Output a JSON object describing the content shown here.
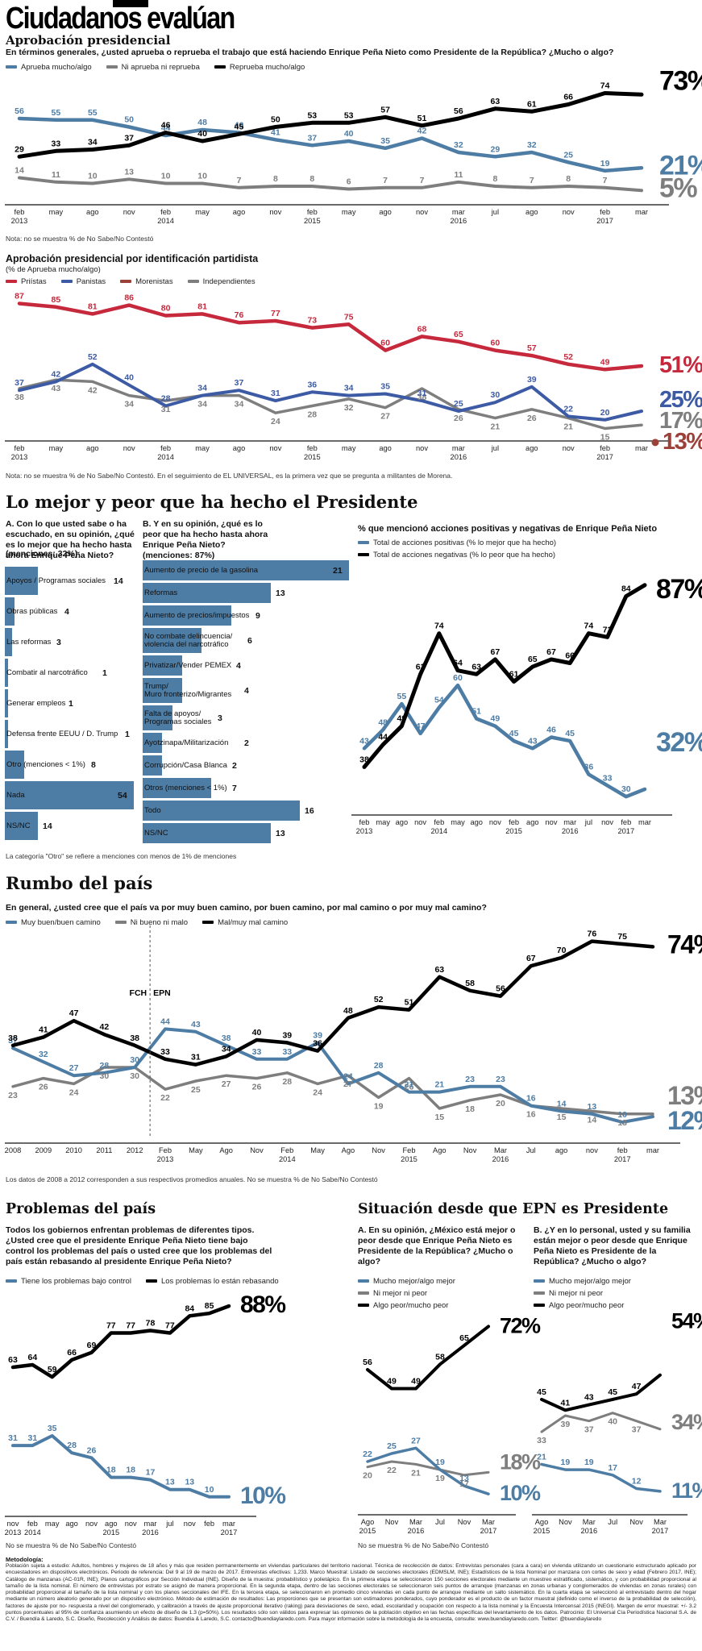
{
  "title": "Ciudadanos evalúan",
  "colors": {
    "steel_blue": "#4d7ca4",
    "black": "#000000",
    "gray": "#7e7e7e",
    "pri_red": "#c6283c",
    "pan_blue": "#3c5ba4",
    "morena_maroon": "#9c4139"
  },
  "s1": {
    "heading": "Aprobación presidencial",
    "question": "En términos generales, ¿usted aprueba o reprueba el trabajo que está haciendo Enrique Peña Nieto como Presidente de la República? ¿Mucho o algo?",
    "legend": [
      {
        "label": "Aprueba mucho/algo",
        "color": "#4d7ca4"
      },
      {
        "label": "Ni aprueba ni reprueba",
        "color": "#7e7e7e"
      },
      {
        "label": "Reprueba mucho/algo",
        "color": "#000000"
      }
    ],
    "note": "Nota: no se muestra % de No Sabe/No Contestó"
  },
  "s2": {
    "heading": "Aprobación presidencial por identificación partidista",
    "subtitle": "(% de Aprueba mucho/algo)",
    "legend": [
      {
        "label": "Priístas",
        "color": "#c6283c"
      },
      {
        "label": "Panistas",
        "color": "#3c5ba4"
      },
      {
        "label": "Morenistas",
        "color": "#9c4139"
      },
      {
        "label": "Independientes",
        "color": "#7e7e7e"
      }
    ],
    "note": "Nota: no se muestra % de No Sabe/No Contestó. En el seguimiento de EL UNIVERSAL, es la primera vez que se pregunta a militantes de Morena."
  },
  "s3": {
    "heading": "Lo mejor y peor que ha hecho el Presidente",
    "question_a": "A. Con lo que usted sabe o ha escuchado, en su opinión, ¿qué es lo mejor que ha hecho hasta ahora Enrique Peña Nieto?",
    "mentions_a": "(menciones: 32%)",
    "question_b": "B. Y en su opinión, ¿qué es lo peor que ha hecho hasta ahora Enrique Peña Nieto?",
    "mentions_b": "(menciones: 87%)",
    "right_title": "% que mencionó acciones positivas y negativas de Enrique Peña Nieto",
    "legend": [
      {
        "label": "Total de acciones positivas (% lo mejor que ha hecho)",
        "color": "#4d7ca4"
      },
      {
        "label": "Total de acciones negativas (% lo peor que ha hecho)",
        "color": "#000000"
      }
    ],
    "footnote": "La categoría \"Otro\" se refiere a menciones con menos de 1% de menciones"
  },
  "s4": {
    "heading": "Rumbo del país",
    "question": "En general, ¿usted cree que el país va por muy buen camino, por buen camino, por mal camino o por muy mal camino?",
    "legend": [
      {
        "label": "Muy buen/buen camino",
        "color": "#4d7ca4"
      },
      {
        "label": "Ni bueno ni malo",
        "color": "#7e7e7e"
      },
      {
        "label": "Mal/muy mal camino",
        "color": "#000000"
      }
    ],
    "note": "Los datos de 2008 a 2012 corresponden a sus respectivos promedios anuales. No se muestra % de No Sabe/No Contestó"
  },
  "s5": {
    "heading": "Problemas del país",
    "question": "Todos los gobiernos enfrentan problemas de diferentes tipos. ¿Usted cree que el presidente Enrique Peña Nieto tiene bajo control los problemas del país o usted cree que los problemas del país están rebasando al presidente Enrique Peña Nieto?",
    "legend": [
      {
        "label": "Tiene los problemas bajo control",
        "color": "#4d7ca4"
      },
      {
        "label": "Los problemas lo están rebasando",
        "color": "#000000"
      }
    ],
    "note": "No se muestra % de No Sabe/No Contestó"
  },
  "s6": {
    "heading": "Situación desde que EPN es Presidente",
    "question_a": "A. En su opinión, ¿México está mejor o peor desde que Enrique Peña Nieto es Presidente de la República? ¿Mucho o algo?",
    "question_b": "B. ¿Y en lo personal, usted y su familia están mejor o peor desde que Enrique Peña Nieto es Presidente de la República? ¿Mucho o algo?",
    "legend": [
      {
        "label": "Mucho mejor/algo mejor",
        "color": "#4d7ca4"
      },
      {
        "label": "Ni mejor ni peor",
        "color": "#7e7e7e"
      },
      {
        "label": "Algo peor/mucho peor",
        "color": "#000000"
      }
    ],
    "note": "No se muestra % de No Sabe/No Contestó"
  },
  "methodology": {
    "title": "Metodología:",
    "body": "Población sujeta a estudio: Adultos, hombres y mujeres de 18 años y más que residen permanentemente en viviendas particulares del territorio nacional. Técnica de recolección de datos: Entrevistas personales (cara a cara) en vivienda utilizando un cuestionario estructurado aplicado por encuestadores en dispositivos electrónicos. Periodo de referencia: Del 9 al 19 de marzo de 2017. Entrevistas efectivas: 1,233. Marco Muestral: Listado de secciones electorales (EDMSLM, INE); Estadísticos de la lista Nominal por manzana con cortes de sexo y edad (Febrero 2017, INE); Catálogo de manzanas (AC-01R, INE); Planos cartográficos por Sección Individual (INE). Diseño de la muestra: probabilístico y polietápico. En la primera etapa se seleccionaron 150 secciones electorales mediante un muestreo estratificado, sistemático, y con probabilidad proporcional al tamaño de la lista nominal. El número de entrevistas por estrato se asignó de manera proporcional. En la segunda etapa, dentro de las secciones electorales se seleccionaron seis puntos de arranque (manzanas en zonas urbanas y conglomerados de viviendas en zonas rurales) con probabilidad proporcional al tamaño de la lista nominal y con los planos seccionales del IFE. En la tercera etapa, se seleccionaron en promedio cinco viviendas en cada punto de arranque mediante un salto sistemático. En la cuarta etapa se seleccionó al entrevistado dentro del hogar mediante un número aleatorio generado por un dispositivo electrónico. Método de estimación de resultados: Las proporciones que se presentan son estimadores ponderados, cuyo ponderador es el producto de un factor muestral (definido como el inverso de la probabilidad de selección), factores de ajuste por no- respuesta a nivel del conglomerado, y calibración a través de ajuste proporcional iterativo (raking) para desviaciones de sexo, edad, escolaridad y ocupación con respecto a la lista nominal y la Encuesta Intercensal 2015 (INEGI). Margen de error muestral: +/- 3.2 puntos porcentuales al 95% de confianza asumiendo un efecto de diseño de 1.3 (p=50%). Los resultados sólo son válidos para expresar las opiniones de la población objetivo en las fechas específicas del levantamiento de los datos. Patrocinio: El Universal Cía Periodística Nacional S.A. de C.V. / Buendía & Laredo, S.C. Diseño, Recolección y Análisis de datos: Buendía & Laredo, S.C. contacto@buendiaylaredo.com. Para mayor información sobre la metodología de la encuesta, consulte: www.buendiaylaredo.com. Twitter: @buendiaylaredo"
  },
  "chart_data": {
    "approval": {
      "type": "line",
      "title": "Aprobación presidencial",
      "categories": [
        "feb|2013",
        "may",
        "ago",
        "nov",
        "feb|2014",
        "may",
        "ago",
        "nov",
        "feb|2015",
        "may",
        "ago",
        "nov",
        "mar|2016",
        "jul",
        "ago",
        "nov",
        "feb|2017",
        "mar"
      ],
      "series": [
        {
          "name": "Ni aprueba ni reprueba",
          "color": "#7e7e7e",
          "values": [
            14,
            11,
            10,
            13,
            10,
            10,
            7,
            8,
            8,
            6,
            7,
            7,
            11,
            8,
            7,
            8,
            7,
            5
          ],
          "final_label": "5%"
        },
        {
          "name": "Aprueba mucho/algo",
          "color": "#4d7ca4",
          "values": [
            56,
            55,
            55,
            50,
            44,
            48,
            46,
            41,
            37,
            40,
            35,
            42,
            32,
            29,
            32,
            25,
            19,
            21
          ],
          "final_label": "21%"
        },
        {
          "name": "Reprueba mucho/algo",
          "color": "#000000",
          "values": [
            29,
            33,
            34,
            37,
            46,
            40,
            45,
            50,
            53,
            53,
            57,
            51,
            56,
            63,
            61,
            66,
            74,
            73
          ],
          "final_label": "73%"
        }
      ]
    },
    "partisan": {
      "type": "line",
      "title": "Aprobación presidencial por identificación partidista (% de Aprueba mucho/algo)",
      "categories": [
        "feb|2013",
        "may",
        "ago",
        "nov",
        "feb|2014",
        "may",
        "ago",
        "nov",
        "feb|2015",
        "may",
        "ago",
        "nov",
        "mar|2016",
        "jul",
        "ago",
        "nov",
        "feb|2017",
        "mar"
      ],
      "series": [
        {
          "name": "Priístas",
          "color": "#c6283c",
          "values": [
            87,
            85,
            81,
            86,
            80,
            81,
            76,
            77,
            73,
            75,
            60,
            68,
            65,
            60,
            57,
            52,
            49,
            51
          ],
          "final_label": "51%"
        },
        {
          "name": "Independientes",
          "color": "#7e7e7e",
          "values": [
            38,
            43,
            42,
            34,
            31,
            34,
            34,
            24,
            28,
            32,
            27,
            38,
            26,
            21,
            26,
            21,
            15,
            17
          ],
          "final_label": "17%"
        },
        {
          "name": "Panistas",
          "color": "#3c5ba4",
          "values": [
            37,
            42,
            52,
            40,
            28,
            34,
            37,
            31,
            36,
            34,
            35,
            31,
            25,
            30,
            39,
            22,
            20,
            25
          ],
          "final_label": "25%"
        },
        {
          "name": "Morenistas",
          "color": "#9c4139",
          "values": [
            null,
            null,
            null,
            null,
            null,
            null,
            null,
            null,
            null,
            null,
            null,
            null,
            null,
            null,
            null,
            null,
            null,
            13
          ],
          "final_label": "13%",
          "dot": true
        }
      ]
    },
    "mentions_trend": {
      "type": "line",
      "title": "% que mencionó acciones positivas y negativas de Enrique Peña Nieto",
      "categories": [
        "feb|2013",
        "may",
        "ago",
        "nov",
        "feb|2014",
        "may",
        "ago",
        "nov",
        "feb|2015",
        "ago",
        "nov",
        "mar|2016",
        "jul",
        "nov",
        "feb|2017",
        "mar"
      ],
      "series": [
        {
          "name": "Total de acciones positivas",
          "color": "#4d7ca4",
          "values": [
            43,
            48,
            55,
            47,
            54,
            60,
            51,
            49,
            45,
            43,
            46,
            45,
            36,
            33,
            30,
            32
          ],
          "final_label": "32%"
        },
        {
          "name": "Total de acciones negativas",
          "color": "#000000",
          "values": [
            38,
            44,
            49,
            63,
            74,
            64,
            63,
            67,
            61,
            65,
            67,
            66,
            74,
            73,
            84,
            87
          ],
          "final_label": "87%"
        }
      ]
    },
    "best_mentions": {
      "type": "bar",
      "title": "Lo mejor que ha hecho (menciones: 32%)",
      "items": [
        {
          "label": "Apoyos / Programas sociales",
          "value": 14
        },
        {
          "label": "Obras públicas",
          "value": 4
        },
        {
          "label": "Las reformas",
          "value": 3
        },
        {
          "label": "Combatir al narcotráfico",
          "value": 1
        },
        {
          "label": "Generar empleos",
          "value": 1
        },
        {
          "label": "Defensa frente EEUU / D. Trump",
          "value": 1
        },
        {
          "label": "Otro (menciones < 1%)",
          "value": 8
        },
        {
          "label": "Nada",
          "value": 54
        },
        {
          "label": "NS/NC",
          "value": 14
        }
      ]
    },
    "worst_mentions": {
      "type": "bar",
      "title": "Lo peor que ha hecho (menciones: 87%)",
      "items": [
        {
          "label": "Aumento de precio de la gasolina",
          "value": 21
        },
        {
          "label": "Reformas",
          "value": 13
        },
        {
          "label": "Aumento de precios/impuestos",
          "value": 9
        },
        {
          "label": "No combate delincuencia/\nviolencia del narcotráfico",
          "value": 6
        },
        {
          "label": "Privatizar/Vender PEMEX",
          "value": 4
        },
        {
          "label": "Trump/\nMuro fronterizo/Migrantes",
          "value": 4
        },
        {
          "label": "Falta de apoyos/\nProgramas sociales",
          "value": 3
        },
        {
          "label": "Ayotzinapa/Militarización",
          "value": 2
        },
        {
          "label": "Corrupción/Casa Blanca",
          "value": 2
        },
        {
          "label": "Otros (menciones < 1%)",
          "value": 7
        },
        {
          "label": "Todo",
          "value": 16
        },
        {
          "label": "NS/NC",
          "value": 13
        }
      ]
    },
    "rumbo": {
      "type": "line",
      "title": "Rumbo del país",
      "categories": [
        "2008",
        "2009",
        "2010",
        "2011",
        "2012",
        "Feb|2013",
        "May",
        "Ago",
        "Nov",
        "Feb|2014",
        "May",
        "Ago",
        "Nov",
        "Feb|2015",
        "Ago",
        "Nov",
        "Mar|2016",
        "Jul",
        "ago",
        "nov",
        "feb|2017",
        "mar"
      ],
      "annot": {
        "left": "FCH",
        "right": "EPN"
      },
      "series": [
        {
          "name": "Ni bueno ni malo",
          "color": "#7e7e7e",
          "values": [
            23,
            26,
            24,
            30,
            30,
            22,
            25,
            27,
            26,
            28,
            24,
            27,
            19,
            26,
            15,
            18,
            20,
            16,
            15,
            14,
            13,
            13
          ],
          "final_label": "13%"
        },
        {
          "name": "Muy buen/buen camino",
          "color": "#4d7ca4",
          "values": [
            37,
            32,
            27,
            28,
            30,
            44,
            43,
            38,
            33,
            33,
            39,
            24,
            28,
            21,
            21,
            23,
            23,
            16,
            14,
            13,
            10,
            12
          ],
          "final_label": "12%"
        },
        {
          "name": "Mal/muy mal camino",
          "color": "#000000",
          "values": [
            38,
            41,
            47,
            42,
            38,
            33,
            31,
            34,
            40,
            39,
            36,
            48,
            52,
            51,
            63,
            58,
            56,
            67,
            70,
            76,
            75,
            74
          ],
          "final_label": "74%"
        }
      ]
    },
    "problemas": {
      "type": "line",
      "title": "Problemas del país",
      "categories": [
        "nov|2013",
        "feb|2014",
        "may",
        "ago",
        "nov",
        "ago|2015",
        "nov",
        "mar|2016",
        "jul",
        "nov",
        "feb",
        "mar|2017"
      ],
      "series": [
        {
          "name": "Tiene los problemas bajo control",
          "color": "#4d7ca4",
          "values": [
            31,
            31,
            35,
            28,
            26,
            18,
            18,
            17,
            13,
            13,
            10,
            10
          ],
          "final_label": "10%"
        },
        {
          "name": "Los problemas lo están rebasando",
          "color": "#000000",
          "values": [
            63,
            64,
            59,
            66,
            69,
            77,
            77,
            78,
            77,
            84,
            85,
            88
          ],
          "final_label": "88%"
        }
      ]
    },
    "situacion_a": {
      "type": "line",
      "title": "México mejor o peor desde EPN",
      "categories": [
        "Ago|2015",
        "Nov",
        "Mar|2016",
        "Jul",
        "Nov",
        "Mar|2017"
      ],
      "series": [
        {
          "name": "Ni mejor ni peor",
          "color": "#7e7e7e",
          "values": [
            20,
            22,
            21,
            19,
            17,
            18
          ],
          "final_label": "18%"
        },
        {
          "name": "Mucho mejor/algo mejor",
          "color": "#4d7ca4",
          "values": [
            22,
            25,
            27,
            19,
            13,
            10
          ],
          "final_label": "10%"
        },
        {
          "name": "Algo peor/mucho peor",
          "color": "#000000",
          "values": [
            56,
            49,
            49,
            58,
            65,
            72
          ],
          "final_label": "72%"
        }
      ]
    },
    "situacion_b": {
      "type": "line",
      "title": "Usted y su familia mejor o peor desde EPN",
      "categories": [
        "Ago|2015",
        "Nov",
        "Mar|2016",
        "Jul",
        "Nov",
        "Mar|2017"
      ],
      "series": [
        {
          "name": "Ni mejor ni peor",
          "color": "#7e7e7e",
          "values": [
            33,
            39,
            37,
            40,
            37,
            34
          ],
          "final_label": "34%"
        },
        {
          "name": "Mucho mejor/algo mejor",
          "color": "#4d7ca4",
          "values": [
            21,
            19,
            19,
            17,
            12,
            11
          ],
          "final_label": "11%"
        },
        {
          "name": "Algo peor/mucho peor",
          "color": "#000000",
          "values": [
            45,
            41,
            43,
            45,
            47,
            54
          ],
          "final_label": "54%"
        }
      ]
    }
  }
}
